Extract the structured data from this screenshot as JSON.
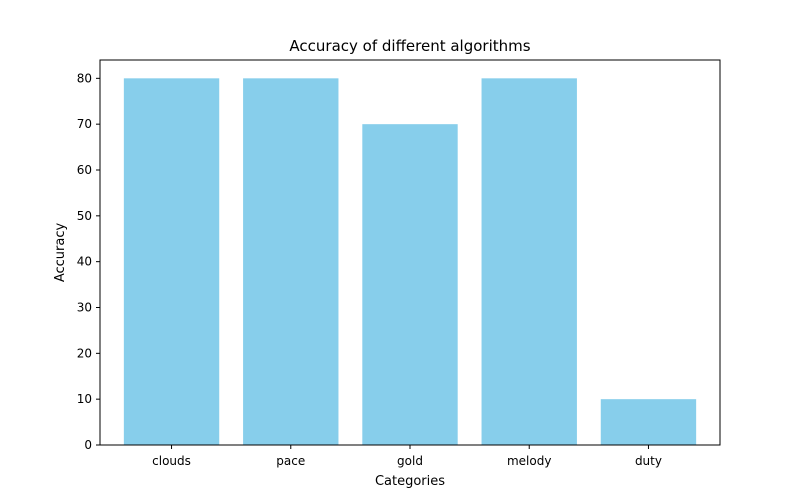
{
  "chart_data": {
    "type": "bar",
    "title": "Accuracy of different algorithms",
    "xlabel": "Categories",
    "ylabel": "Accuracy",
    "categories": [
      "clouds",
      "pace",
      "gold",
      "melody",
      "duty"
    ],
    "values": [
      80,
      80,
      70,
      80,
      10
    ],
    "ylim": [
      0,
      84
    ],
    "yticks": [
      0,
      10,
      20,
      30,
      40,
      50,
      60,
      70,
      80
    ],
    "bar_color": "#87ceeb",
    "grid": false,
    "legend": "none"
  }
}
